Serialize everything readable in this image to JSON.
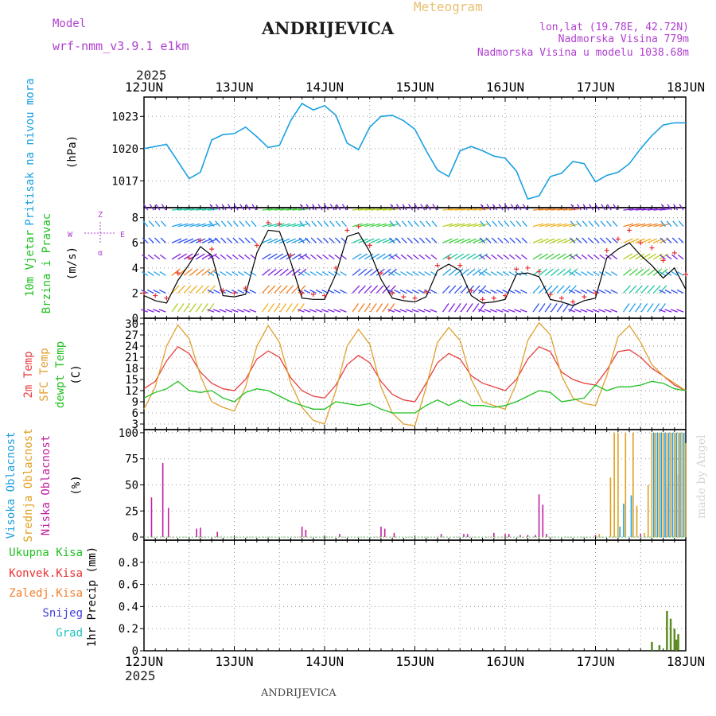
{
  "header": {
    "model_label": "Model",
    "model_name": "wrf-nmm_v3.9.1  e1km",
    "station": "ANDRIJEVICA",
    "product": "Meteogram",
    "lonlat": "lon,lat (19.78E, 42.72N)",
    "altitude": "Nadmorska Visina 779m",
    "model_altitude": "Nadmorska Visina u modelu 1038.68m",
    "footer_station": "ANDRIJEVICA",
    "credit": "made by Angel",
    "year": "2025"
  },
  "colors": {
    "pressure": "#1aa0e0",
    "wind_speed": "#000000",
    "wind_gust_marker": "#e83030",
    "temp2m": "#e84040",
    "sfc_temp": "#e0a030",
    "dewpoint": "#20c020",
    "cloud_high": "#20a0e0",
    "cloud_mid": "#e0a020",
    "cloud_low": "#c020a0",
    "precip_total": "#20c020",
    "precip_conv": "#e83030",
    "precip_frozen": "#f08030",
    "precip_snow": "#4040e0",
    "precip_hail": "#20c0c0",
    "bar_bars": "#5a8a20"
  },
  "chart_data": [
    {
      "id": "pressure",
      "type": "line",
      "ylabel_1": "Pritisak na nivou mora",
      "unit": "(hPa)",
      "ylim": [
        1014.5,
        1024.8
      ],
      "yticks": [
        1017,
        1020,
        1023
      ],
      "grid": true,
      "x": [
        0,
        6,
        12,
        15,
        18,
        21,
        24,
        27,
        30,
        33,
        36,
        39,
        42,
        45,
        48,
        51,
        54,
        57,
        60,
        63,
        66,
        69,
        72,
        75,
        78,
        81,
        84,
        87,
        90,
        93,
        96,
        99,
        102,
        105,
        108,
        111,
        114,
        117,
        120,
        123,
        126,
        129,
        132,
        135,
        138,
        141,
        144
      ],
      "series": [
        {
          "values": [
            1020.0,
            1020.4,
            1017.2,
            1017.8,
            1020.8,
            1021.3,
            1021.4,
            1022.0,
            1021.1,
            1020.1,
            1020.3,
            1022.6,
            1024.2,
            1023.6,
            1024.0,
            1023.1,
            1020.5,
            1019.9,
            1022.0,
            1023.0,
            1023.1,
            1022.6,
            1021.8,
            1019.8,
            1018.0,
            1017.4,
            1019.8,
            1020.2,
            1019.8,
            1019.3,
            1019.1,
            1017.9,
            1015.3,
            1015.6,
            1017.4,
            1017.7,
            1018.8,
            1018.6,
            1016.9,
            1017.5,
            1017.8,
            1018.6,
            1020.0,
            1021.2,
            1022.2,
            1022.4,
            1022.4
          ]
        }
      ]
    },
    {
      "id": "wind",
      "type": "line",
      "ylabel_1": "10m Vjetar",
      "ylabel_2": "Brzina i Pravac",
      "unit": "(m/s)",
      "compass": {
        "n": "Z",
        "s": "α",
        "w": "W",
        "e": "E"
      },
      "ylim": [
        0,
        8.8
      ],
      "yticks": [
        0,
        2,
        4,
        6,
        8
      ],
      "grid": true,
      "x": [
        0,
        3,
        6,
        9,
        12,
        15,
        18,
        21,
        24,
        27,
        30,
        33,
        36,
        39,
        42,
        45,
        48,
        51,
        54,
        57,
        60,
        63,
        66,
        69,
        72,
        75,
        78,
        81,
        84,
        87,
        90,
        93,
        96,
        99,
        102,
        105,
        108,
        111,
        114,
        117,
        120,
        123,
        126,
        129,
        132,
        135,
        138,
        141,
        144
      ],
      "series": [
        {
          "name": "speed",
          "values": [
            1.8,
            1.4,
            1.2,
            3.0,
            4.3,
            5.7,
            5.0,
            1.8,
            1.7,
            1.9,
            5.2,
            7.0,
            6.9,
            4.5,
            1.6,
            1.5,
            1.5,
            3.5,
            6.5,
            6.8,
            5.3,
            3.1,
            1.6,
            1.4,
            1.3,
            1.7,
            3.8,
            4.3,
            3.8,
            1.8,
            1.2,
            1.3,
            1.5,
            3.5,
            3.6,
            3.3,
            1.5,
            1.3,
            1.0,
            1.4,
            1.6,
            4.8,
            5.5,
            6.0,
            5.0,
            4.2,
            3.2,
            4.0,
            2.3
          ]
        },
        {
          "name": "gust",
          "values": [
            2.0,
            1.8,
            1.6,
            3.6,
            4.8,
            6.2,
            5.5,
            2.2,
            2.0,
            2.4,
            5.8,
            7.6,
            7.5,
            5.0,
            2.0,
            1.9,
            1.8,
            4.0,
            7.0,
            7.3,
            5.8,
            3.6,
            2.0,
            1.7,
            1.6,
            2.1,
            4.2,
            4.8,
            4.2,
            2.2,
            1.5,
            1.6,
            1.8,
            3.9,
            4.0,
            3.7,
            1.9,
            1.6,
            1.3,
            1.7,
            2.0,
            5.4,
            6.3,
            7.0,
            6.0,
            5.6,
            4.6,
            5.2,
            3.5
          ]
        }
      ]
    },
    {
      "id": "temperature",
      "type": "line",
      "ylabel_1": "2m Temp",
      "ylabel_2": "SFC Temp",
      "ylabel_3": "dewpt Temp",
      "unit": "(C)",
      "ylim": [
        1.5,
        31.5
      ],
      "yticks": [
        3,
        6,
        9,
        12,
        15,
        18,
        21,
        24,
        27,
        30
      ],
      "grid": true,
      "x": [
        0,
        3,
        6,
        9,
        12,
        15,
        18,
        21,
        24,
        27,
        30,
        33,
        36,
        39,
        42,
        45,
        48,
        51,
        54,
        57,
        60,
        63,
        66,
        69,
        72,
        75,
        78,
        81,
        84,
        87,
        90,
        93,
        96,
        99,
        102,
        105,
        108,
        111,
        114,
        117,
        120,
        123,
        126,
        129,
        132,
        135,
        138,
        141,
        144
      ],
      "series": [
        {
          "name": "2m Temp",
          "values": [
            12.5,
            14.5,
            20.0,
            23.8,
            22.0,
            17.0,
            14.0,
            12.5,
            12.0,
            15.0,
            20.5,
            22.7,
            21.0,
            15.5,
            12.0,
            10.5,
            10.0,
            13.5,
            19.0,
            21.5,
            19.5,
            14.5,
            11.0,
            9.5,
            9.0,
            14.0,
            19.5,
            22.0,
            20.5,
            16.0,
            14.0,
            13.0,
            12.0,
            15.0,
            20.5,
            23.8,
            22.5,
            17.0,
            15.0,
            14.0,
            13.5,
            17.5,
            22.5,
            23.0,
            21.0,
            18.0,
            16.0,
            13.5,
            12.0
          ]
        },
        {
          "name": "SFC Temp",
          "values": [
            7.0,
            13.0,
            24.0,
            29.7,
            26.0,
            16.0,
            9.0,
            7.5,
            6.5,
            13.0,
            24.0,
            29.5,
            25.0,
            14.0,
            7.5,
            4.0,
            3.0,
            12.0,
            24.0,
            28.5,
            24.5,
            13.0,
            6.0,
            3.0,
            2.5,
            13.0,
            25.0,
            29.0,
            25.5,
            15.0,
            9.0,
            8.0,
            7.0,
            14.0,
            25.5,
            30.3,
            27.0,
            16.0,
            10.0,
            8.5,
            8.0,
            16.0,
            26.5,
            29.5,
            25.0,
            19.0,
            16.0,
            14.0,
            12.0
          ]
        },
        {
          "name": "dewpt Temp",
          "values": [
            10.0,
            11.5,
            12.5,
            14.5,
            12.0,
            11.5,
            12.0,
            10.0,
            9.0,
            11.5,
            12.5,
            12.0,
            10.5,
            9.0,
            8.0,
            7.0,
            7.0,
            9.0,
            8.5,
            8.0,
            8.5,
            7.0,
            6.0,
            6.0,
            6.0,
            8.0,
            9.5,
            8.0,
            9.5,
            8.0,
            8.0,
            7.5,
            8.0,
            9.0,
            10.5,
            12.0,
            11.5,
            9.0,
            9.5,
            10.0,
            13.5,
            12.0,
            13.0,
            13.0,
            13.5,
            14.5,
            14.0,
            12.5,
            12.0
          ]
        }
      ]
    },
    {
      "id": "clouds",
      "type": "bar",
      "ylabel_1": "Visoka Oblacnost",
      "ylabel_2": "Srednja Oblacnost",
      "ylabel_3": "Niska Oblacnost",
      "unit": "(%)",
      "ylim": [
        -3,
        103
      ],
      "yticks": [
        0,
        25,
        50,
        75,
        100
      ],
      "grid": true,
      "series": [
        {
          "name": "Niska Oblacnost",
          "points": [
            [
              2,
              38
            ],
            [
              5,
              71
            ],
            [
              6.5,
              28
            ],
            [
              14,
              8
            ],
            [
              15,
              9
            ],
            [
              19.5,
              5
            ],
            [
              42,
              10
            ],
            [
              43,
              7
            ],
            [
              52,
              3
            ],
            [
              63,
              10
            ],
            [
              64,
              8
            ],
            [
              66.5,
              4
            ],
            [
              79,
              3
            ],
            [
              85,
              3
            ],
            [
              86,
              3
            ],
            [
              93,
              4
            ],
            [
              96,
              3
            ],
            [
              97,
              3
            ],
            [
              100,
              2
            ],
            [
              102,
              2
            ],
            [
              104,
              2
            ],
            [
              105,
              41
            ],
            [
              106,
              31
            ],
            [
              107,
              3
            ],
            [
              120,
              2
            ],
            [
              132,
              3
            ],
            [
              139,
              48
            ],
            [
              142,
              60
            ]
          ]
        },
        {
          "name": "Srednja Oblacnost",
          "points": [
            [
              121,
              3
            ],
            [
              124,
              57
            ],
            [
              125,
              100
            ],
            [
              126,
              100
            ],
            [
              128,
              100
            ],
            [
              130,
              100
            ],
            [
              131,
              30
            ],
            [
              133,
              4
            ],
            [
              134,
              50
            ],
            [
              135,
              100
            ],
            [
              136,
              100
            ],
            [
              137,
              100
            ],
            [
              138,
              100
            ],
            [
              139,
              100
            ],
            [
              140,
              100
            ],
            [
              141,
              100
            ],
            [
              142,
              100
            ],
            [
              143,
              100
            ],
            [
              144,
              90
            ]
          ]
        },
        {
          "name": "Visoka Oblacnost",
          "points": [
            [
              126.5,
              10
            ],
            [
              127.5,
              32
            ],
            [
              129.5,
              40
            ],
            [
              135.5,
              100
            ],
            [
              136.5,
              100
            ],
            [
              137.5,
              100
            ],
            [
              138.5,
              100
            ],
            [
              139.5,
              100
            ],
            [
              140.5,
              100
            ],
            [
              141.5,
              100
            ],
            [
              142.5,
              100
            ],
            [
              143.5,
              100
            ]
          ]
        }
      ]
    },
    {
      "id": "precip",
      "type": "bar",
      "ylabel_1": "1hr Precip (mm)",
      "legend": [
        "Ukupna Kisa",
        "Konvek.Kisa",
        "Zaledj.Kisa",
        "Snijeg",
        "Grad"
      ],
      "ylim": [
        0,
        1.0
      ],
      "yticks": [
        0,
        0.2,
        0.4,
        0.6,
        0.8
      ],
      "grid": true,
      "series": [
        {
          "name": "Ukupna Kisa",
          "points": [
            [
              135,
              0.08
            ],
            [
              137,
              0.05
            ],
            [
              139,
              0.36
            ],
            [
              140,
              0.29
            ],
            [
              141,
              0.2
            ],
            [
              142,
              0.15
            ],
            [
              141.5,
              0.1
            ]
          ]
        }
      ]
    }
  ],
  "time_axis": {
    "labels": [
      "12JUN",
      "13JUN",
      "14JUN",
      "15JUN",
      "16JUN",
      "17JUN",
      "18JUN"
    ],
    "hours_total": 144
  }
}
